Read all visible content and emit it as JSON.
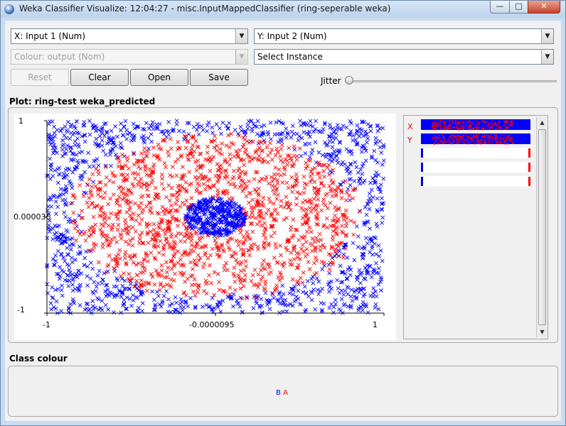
{
  "window": {
    "title": "Weka Classifier Visualize: 12:04:27 - misc.InputMappedClassifier (ring-seperable weka)",
    "minimize_glyph": "—",
    "maximize_glyph": "□",
    "close_glyph": "✕"
  },
  "controls": {
    "x_axis": "X: Input 1 (Num)",
    "y_axis": "Y: Input 2 (Num)",
    "colour": "Colour: output (Nom)",
    "select_instance": "Select Instance",
    "reset_label": "Reset",
    "clear_label": "Clear",
    "open_label": "Open",
    "save_label": "Save",
    "jitter_label": "Jitter",
    "jitter_value": 0,
    "dropdown_icon": "chevron-down-icon"
  },
  "plot": {
    "title": "Plot: ring-test weka_predicted",
    "y_max_label": "1",
    "y_mid_label": "0.000036",
    "y_min_label": "-1",
    "x_min_label": "-1",
    "x_mid_label": "-0.0000095",
    "x_max_label": "1",
    "attr_x_letter": "X",
    "attr_y_letter": "Y"
  },
  "class_colour": {
    "title": "Class colour",
    "class_b": "B",
    "class_a": "A",
    "color_b": "#0000ff",
    "color_a": "#ff0000"
  },
  "chart_data": {
    "type": "scatter",
    "title": "Plot: ring-test weka_predicted",
    "xlabel": "Input 1",
    "ylabel": "Input 2",
    "xlim": [
      -1,
      1
    ],
    "ylim": [
      -1,
      1
    ],
    "x_ticks": [
      "-1",
      "-0.0000095",
      "1"
    ],
    "y_ticks": [
      "-1",
      "0.000036",
      "1"
    ],
    "series": [
      {
        "name": "B",
        "color": "#0000ff",
        "marker": "x",
        "regions": [
          {
            "shape": "outside-ellipse",
            "center": [
              0,
              0
            ],
            "radii": [
              0.84,
              0.84
            ]
          },
          {
            "shape": "disc",
            "center": [
              0,
              0
            ],
            "radii": [
              0.18,
              0.2
            ]
          }
        ]
      },
      {
        "name": "A",
        "color": "#ff0000",
        "marker": "x",
        "regions": [
          {
            "shape": "annulus",
            "center": [
              0,
              0
            ],
            "inner_radii": [
              0.18,
              0.2
            ],
            "outer_radii": [
              0.84,
              0.84
            ]
          }
        ]
      }
    ],
    "legend": [
      "B",
      "A"
    ]
  }
}
